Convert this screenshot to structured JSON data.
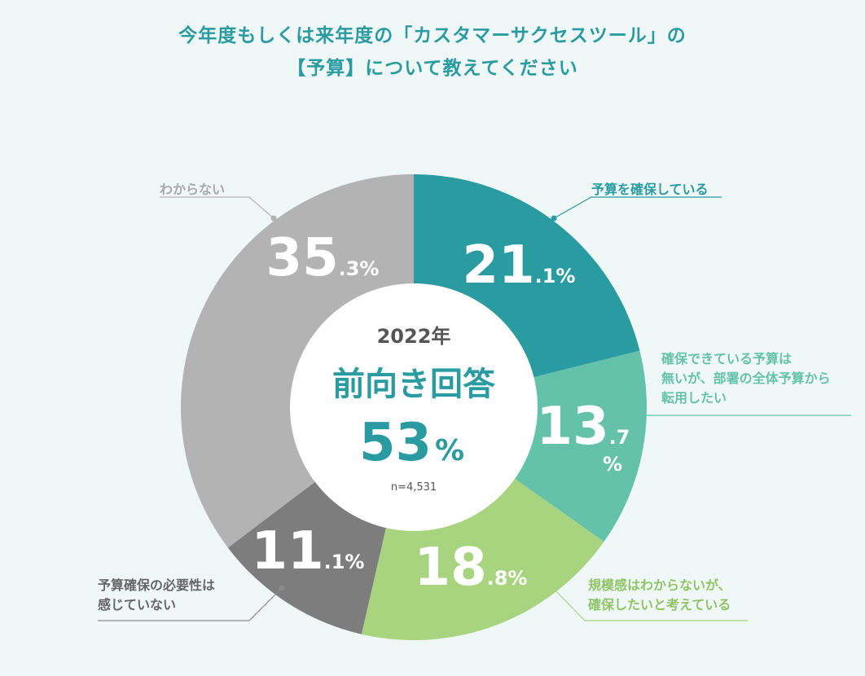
{
  "title": {
    "line1": "今年度もしくは来年度の「カスタマーサクセスツール」の",
    "line2": "【予算】について教えてください"
  },
  "center": {
    "year": "2022年",
    "headline": "前向き回答",
    "value_num": "53",
    "value_pct": "%",
    "sample": "n=4,531"
  },
  "colors": {
    "background": "#eff8f7",
    "title": "#2a9ba0",
    "slice1": "#2a9ba0",
    "slice2": "#64c2ab",
    "slice3": "#a8d47f",
    "slice4": "#7d7d7d",
    "slice5": "#b3b3b3"
  },
  "chart_data": {
    "type": "pie",
    "donut": true,
    "categories": [
      "予算を確保している",
      "確保できている予算は無いが、部署の全体予算から転用したい",
      "規模感はわからないが、確保したいと考えている",
      "予算確保の必要性は感じていない",
      "わからない"
    ],
    "values": [
      21.1,
      13.7,
      18.8,
      11.1,
      35.3
    ],
    "value_labels": [
      {
        "int": "21",
        "dec": ".1%"
      },
      {
        "int": "13",
        "dec": ".7"
      },
      {
        "int": "18",
        "dec": ".8%"
      },
      {
        "int": "11",
        "dec": ".1%"
      },
      {
        "int": "35",
        "dec": ".3%"
      }
    ],
    "value_label_extra": {
      "pct_13": "%"
    },
    "callouts": [
      {
        "lines": [
          "予算を確保している"
        ]
      },
      {
        "lines": [
          "確保できている予算は",
          "無いが、部署の全体予算から",
          "転用したい"
        ]
      },
      {
        "lines": [
          "規模感はわからないが、",
          "確保したいと考えている"
        ]
      },
      {
        "lines": [
          "予算確保の必要性は",
          "感じていない"
        ]
      },
      {
        "lines": [
          "わからない"
        ]
      }
    ]
  }
}
